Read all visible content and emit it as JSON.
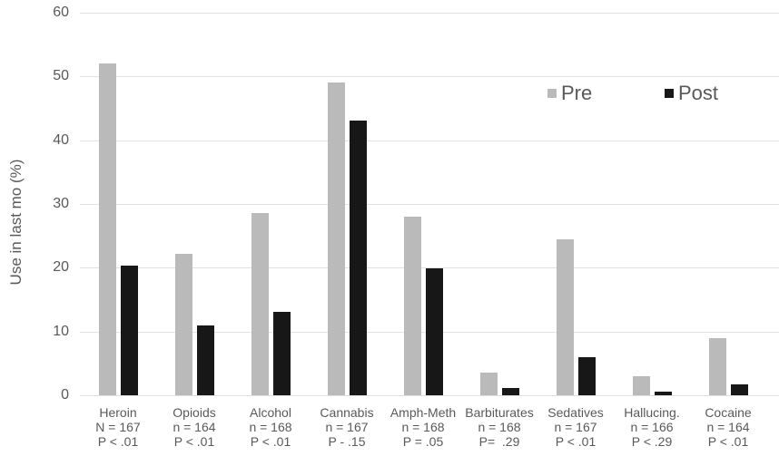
{
  "chart_data": {
    "type": "bar",
    "title": "",
    "xlabel": "",
    "ylabel": "Use in last mo (%)",
    "ylim": [
      0,
      60
    ],
    "yticks": [
      0,
      10,
      20,
      30,
      40,
      50,
      60
    ],
    "grid": true,
    "legend_position": "upper right (inside plot)",
    "categories": [
      "Heroin",
      "Opioids",
      "Alcohol",
      "Cannabis",
      "Amph-Meth",
      "Barbiturates",
      "Sedatives",
      "Hallucing.",
      "Cocaine"
    ],
    "category_details": [
      {
        "name": "Heroin",
        "n": "N = 167",
        "p": "P < .01"
      },
      {
        "name": "Opioids",
        "n": "n = 164",
        "p": "P < .01"
      },
      {
        "name": "Alcohol",
        "n": "n = 168",
        "p": "P < .01"
      },
      {
        "name": "Cannabis",
        "n": "n = 167",
        "p": "P - .15"
      },
      {
        "name": "Amph-Meth",
        "n": "n = 168",
        "p": "P = .05"
      },
      {
        "name": "Barbiturates",
        "n": "n = 168",
        "p": "P=  .29"
      },
      {
        "name": "Sedatives",
        "n": "n = 167",
        "p": "P < .01"
      },
      {
        "name": "Hallucing.",
        "n": "n = 166",
        "p": "P < .29"
      },
      {
        "name": "Cocaine",
        "n": "n = 164",
        "p": "P < .01"
      }
    ],
    "series": [
      {
        "name": "Pre",
        "color": "#bababa",
        "values": [
          52.0,
          22.2,
          28.6,
          49.1,
          28.0,
          3.6,
          24.5,
          3.0,
          9.0
        ]
      },
      {
        "name": "Post",
        "color": "#171717",
        "values": [
          20.3,
          11.0,
          13.1,
          43.1,
          19.9,
          1.1,
          6.0,
          0.6,
          1.7
        ]
      }
    ]
  },
  "legend": {
    "pre_label": "Pre",
    "post_label": "Post"
  }
}
